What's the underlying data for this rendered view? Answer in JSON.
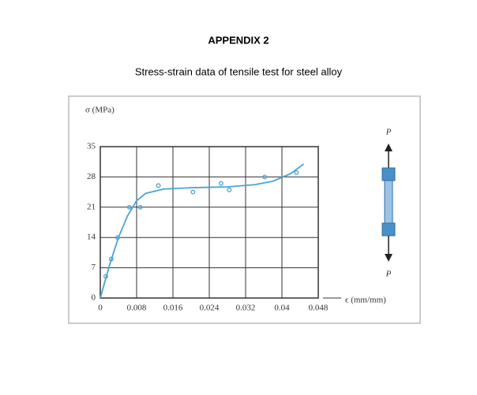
{
  "heading": "APPENDIX 2",
  "chart_data": {
    "type": "scatter",
    "title": "Stress-strain data of tensile test for steel alloy",
    "y_label": "σ (MPa)",
    "x_label": "ϵ (mm/mm)",
    "annotations": [
      "P",
      "P"
    ],
    "xlim": [
      0,
      0.048
    ],
    "xticks": [
      0,
      0.008,
      0.016,
      0.024,
      0.032,
      0.04,
      0.048
    ],
    "ylim": [
      0,
      35
    ],
    "yticks": [
      0,
      7,
      14,
      21,
      28,
      35
    ],
    "grid": true,
    "series": [
      {
        "color": "#4aa3d8",
        "style": "markers",
        "x": [
          0.0012,
          0.0024,
          0.0038,
          0.0064,
          0.0088,
          0.0128,
          0.0204,
          0.0266,
          0.0284,
          0.0362,
          0.0432
        ],
        "values": [
          5,
          9,
          14,
          21,
          21,
          26,
          24.5,
          26.5,
          25,
          28,
          29
        ]
      },
      {
        "color": "#4aa3d8",
        "style": "line",
        "x": [
          0,
          0.002,
          0.004,
          0.006,
          0.008,
          0.01,
          0.014,
          0.02,
          0.028,
          0.034,
          0.038,
          0.042,
          0.0448
        ],
        "values": [
          0,
          7.5,
          14,
          19,
          22.5,
          24.2,
          25.2,
          25.5,
          25.7,
          26.2,
          27,
          28.8,
          31
        ]
      }
    ]
  }
}
